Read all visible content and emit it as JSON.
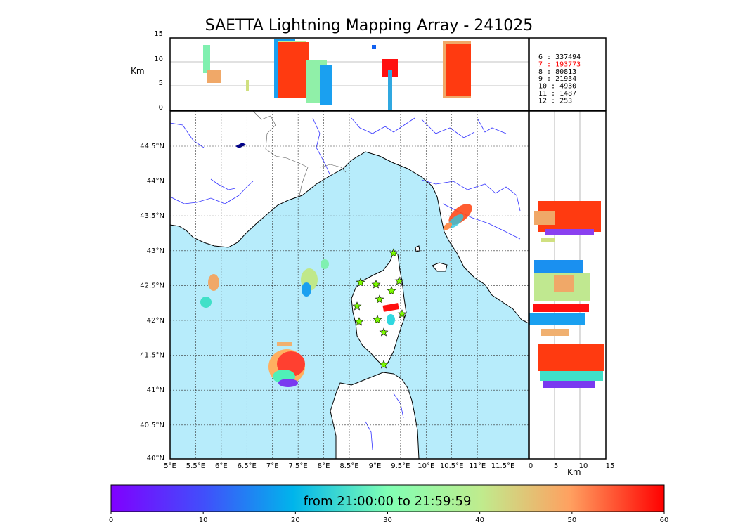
{
  "title": "SAETTA Lightning Mapping Array - 241025",
  "km_label": "Km",
  "top_yticks": [
    "15",
    "10",
    "5",
    "0"
  ],
  "right_xticks": [
    "0",
    "5",
    "10",
    "15"
  ],
  "lon_labels": [
    "5°E",
    "5.5°E",
    "6°E",
    "6.5°E",
    "7°E",
    "7.5°E",
    "8°E",
    "8.5°E",
    "9°E",
    "9.5°E",
    "10°E",
    "10.5°E",
    "11°E",
    "11.5°E"
  ],
  "lat_labels": [
    "44.5°N",
    "44°N",
    "43.5°N",
    "43°N",
    "42.5°N",
    "42°N",
    "41.5°N",
    "41°N",
    "40.5°N",
    "40°N"
  ],
  "counts": [
    {
      "label": "6  :   337494",
      "color": "#000000"
    },
    {
      "label": "7  :   193773",
      "color": "#ff0000"
    },
    {
      "label": "8  :     80813",
      "color": "#000000"
    },
    {
      "label": "9  :     21934",
      "color": "#000000"
    },
    {
      "label": "10  :      4930",
      "color": "#000000"
    },
    {
      "label": "11  :      1487",
      "color": "#000000"
    },
    {
      "label": "12  :       253",
      "color": "#000000"
    }
  ],
  "colorbar": {
    "text": "from 21:00:00 to 21:59:59",
    "ticks": [
      "0",
      "10",
      "20",
      "30",
      "40",
      "50",
      "60"
    ],
    "colormap": "rainbow"
  },
  "colors": {
    "sea": "#b7ecfb",
    "land": "#ffffff",
    "rivers": "#3333ff",
    "stations": "#7cfc00"
  }
}
